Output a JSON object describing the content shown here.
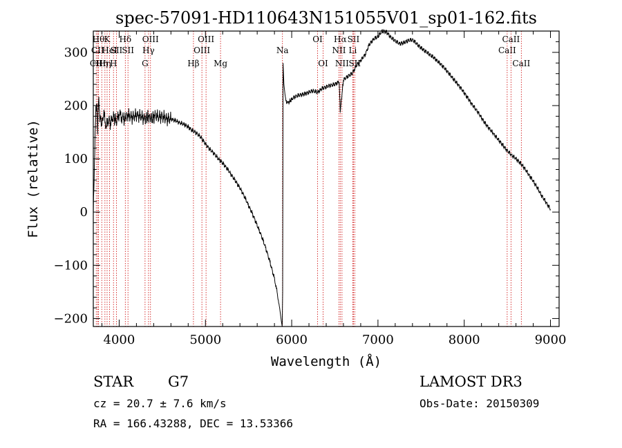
{
  "chart_data": {
    "type": "line",
    "title": "spec-57091-HD110643N151055V01_sp01-162.fits",
    "xlabel": "Wavelength (Å)",
    "ylabel": "Flux (relative)",
    "xlim": [
      3700,
      9100
    ],
    "ylim": [
      -215,
      340
    ],
    "xticks": [
      4000,
      5000,
      6000,
      7000,
      8000,
      9000
    ],
    "xtick_labels": [
      "4000",
      "5000",
      "6000",
      "7000",
      "8000",
      "9000"
    ],
    "yticks": [
      -200,
      -100,
      0,
      100,
      200,
      300
    ],
    "ytick_labels": [
      "−200",
      "−100",
      "0",
      "100",
      "200",
      "300"
    ],
    "series": [
      {
        "name": "flux",
        "x": [
          3700,
          3710,
          3720,
          3730,
          3740,
          3750,
          3760,
          3780,
          3800,
          3820,
          3850,
          3880,
          3900,
          3930,
          3950,
          3970,
          4000,
          4030,
          4060,
          4100,
          4150,
          4200,
          4250,
          4300,
          4340,
          4380,
          4420,
          4450,
          4500,
          4550,
          4600,
          4650,
          4700,
          4750,
          4800,
          4850,
          4900,
          4950,
          5000,
          5050,
          5100,
          5150,
          5200,
          5250,
          5300,
          5350,
          5400,
          5450,
          5500,
          5550,
          5600,
          5650,
          5700,
          5750,
          5800,
          5830,
          5860,
          5880,
          5890,
          5895,
          5900,
          5910,
          5930,
          5960,
          6000,
          6050,
          6100,
          6150,
          6200,
          6250,
          6300,
          6350,
          6400,
          6450,
          6500,
          6550,
          6563,
          6600,
          6650,
          6700,
          6750,
          6800,
          6850,
          6900,
          6950,
          7000,
          7050,
          7100,
          7150,
          7200,
          7250,
          7300,
          7350,
          7400,
          7450,
          7500,
          7550,
          7600,
          7650,
          7700,
          7750,
          7800,
          7850,
          7900,
          7950,
          8000,
          8050,
          8100,
          8150,
          8200,
          8250,
          8300,
          8350,
          8400,
          8450,
          8500,
          8550,
          8600,
          8650,
          8700,
          8750,
          8800,
          8850,
          8900,
          8950,
          9000
        ],
        "y": [
          0,
          60,
          140,
          190,
          200,
          150,
          210,
          175,
          165,
          185,
          160,
          175,
          165,
          180,
          175,
          170,
          185,
          178,
          175,
          182,
          178,
          182,
          180,
          175,
          180,
          175,
          182,
          178,
          180,
          175,
          175,
          172,
          168,
          165,
          160,
          153,
          148,
          140,
          128,
          118,
          110,
          100,
          92,
          82,
          70,
          58,
          45,
          30,
          12,
          -5,
          -25,
          -45,
          -68,
          -95,
          -125,
          -150,
          -180,
          -205,
          -215,
          -150,
          280,
          240,
          210,
          205,
          212,
          218,
          220,
          222,
          225,
          228,
          225,
          232,
          235,
          238,
          240,
          245,
          190,
          248,
          255,
          260,
          275,
          285,
          295,
          315,
          325,
          330,
          340,
          338,
          328,
          322,
          316,
          318,
          322,
          324,
          316,
          308,
          302,
          296,
          290,
          282,
          274,
          265,
          255,
          245,
          235,
          224,
          212,
          200,
          190,
          177,
          165,
          155,
          145,
          135,
          125,
          115,
          107,
          100,
          92,
          82,
          70,
          58,
          45,
          30,
          18,
          5
        ]
      }
    ],
    "line_markers": [
      {
        "wl": 3734,
        "label": "CII",
        "row": 2
      },
      {
        "wl": 3750,
        "label": "CII",
        "row": 1
      },
      {
        "wl": 3760,
        "label": "Hθ",
        "row": 0
      },
      {
        "wl": 3798,
        "label": "Hη",
        "row": 2
      },
      {
        "wl": 3835,
        "label": "Hη",
        "row": 2
      },
      {
        "wl": 3860,
        "label": "K",
        "row": 0
      },
      {
        "wl": 3889,
        "label": "HeI",
        "row": 1
      },
      {
        "wl": 3934,
        "label": "H",
        "row": 2
      },
      {
        "wl": 3968,
        "label": "SII",
        "row": 1
      },
      {
        "wl": 4071,
        "label": "Hδ",
        "row": 0
      },
      {
        "wl": 4102,
        "label": "SII",
        "row": 1
      },
      {
        "wl": 4300,
        "label": "G",
        "row": 2
      },
      {
        "wl": 4340,
        "label": "Hγ",
        "row": 1
      },
      {
        "wl": 4363,
        "label": "OIII",
        "row": 0
      },
      {
        "wl": 4861,
        "label": "Hβ",
        "row": 2
      },
      {
        "wl": 4959,
        "label": "OIII",
        "row": 1
      },
      {
        "wl": 5007,
        "label": "OIII",
        "row": 0
      },
      {
        "wl": 5175,
        "label": "Mg",
        "row": 2
      },
      {
        "wl": 5893,
        "label": "Na",
        "row": 1
      },
      {
        "wl": 6300,
        "label": "OI",
        "row": 0
      },
      {
        "wl": 6364,
        "label": "OI",
        "row": 2
      },
      {
        "wl": 6548,
        "label": "NII",
        "row": 1
      },
      {
        "wl": 6563,
        "label": "Hα",
        "row": 0
      },
      {
        "wl": 6583,
        "label": "NII",
        "row": 2
      },
      {
        "wl": 6708,
        "label": "Li",
        "row": 1
      },
      {
        "wl": 6716,
        "label": "SII",
        "row": 0
      },
      {
        "wl": 6731,
        "label": "SII",
        "row": 2
      },
      {
        "wl": 8498,
        "label": "CaII",
        "row": 1
      },
      {
        "wl": 8542,
        "label": "CaII",
        "row": 0
      },
      {
        "wl": 8662,
        "label": "CaII",
        "row": 2
      }
    ]
  },
  "info": {
    "object_type": "STAR",
    "subclass": "G7",
    "survey": "LAMOST DR3",
    "cz": "cz = 20.7 ± 7.6 km/s",
    "obs_date": "Obs-Date: 20150309",
    "coords": "RA = 166.43288, DEC =  13.53366"
  },
  "colors": {
    "line_marker": "#cc0000",
    "spectrum": "#000000",
    "axes": "#000000"
  }
}
